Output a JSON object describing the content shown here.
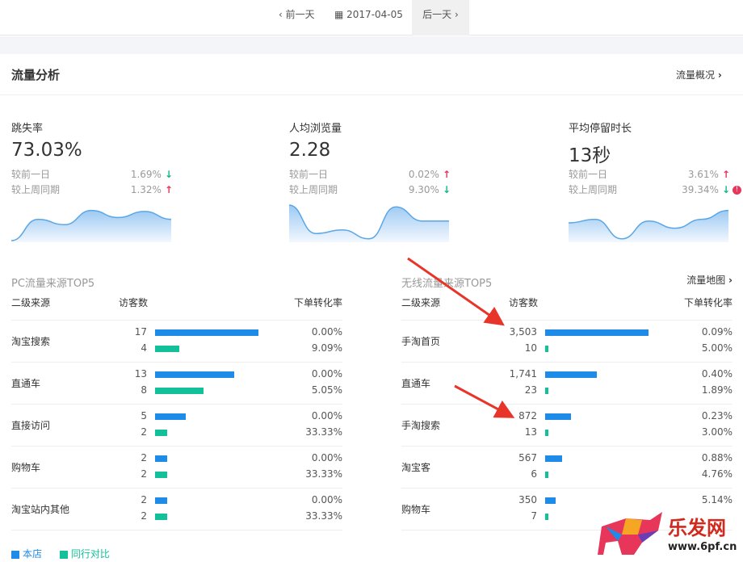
{
  "datebar": {
    "prev": "前一天",
    "date": "2017-04-05",
    "next": "后一天"
  },
  "section": {
    "title": "流量分析",
    "overview_link": "流量概况"
  },
  "metrics": [
    {
      "label": "跳失率",
      "value": "73.03%",
      "day_label": "较前一日",
      "day_value": "1.69%",
      "day_dir": "down",
      "week_label": "较上周同期",
      "week_value": "1.32%",
      "week_dir": "up",
      "trend": [
        0,
        0.6,
        0.45,
        0.85,
        0.65,
        0.82,
        0.6
      ]
    },
    {
      "label": "人均浏览量",
      "value": "2.28",
      "day_label": "较前一日",
      "day_value": "0.02%",
      "day_dir": "up",
      "week_label": "较上周同期",
      "week_value": "9.30%",
      "week_dir": "down",
      "trend": [
        1,
        0.2,
        0.3,
        0.05,
        0.95,
        0.55,
        0.55
      ]
    },
    {
      "label": "平均停留时长",
      "value": "13秒",
      "day_label": "较前一日",
      "day_value": "3.61%",
      "day_dir": "up",
      "week_label": "较上周同期",
      "week_value": "39.34%",
      "week_dir": "down",
      "warning": true,
      "trend": [
        0.5,
        0.6,
        0.05,
        0.55,
        0.35,
        0.6,
        0.85
      ]
    }
  ],
  "colors": {
    "store": "#1e8be8",
    "peer": "#12c09a",
    "up": "#e8355a",
    "down": "#12b88a"
  },
  "pc": {
    "title": "PC流量来源TOP5",
    "col_source": "二级来源",
    "col_visitors": "访客数",
    "col_rate": "下单转化率",
    "max": 17,
    "rows": [
      {
        "source": "淘宝搜索",
        "store": 17,
        "peer": 4,
        "store_rate": "0.00%",
        "peer_rate": "9.09%"
      },
      {
        "source": "直通车",
        "store": 13,
        "peer": 8,
        "store_rate": "0.00%",
        "peer_rate": "5.05%"
      },
      {
        "source": "直接访问",
        "store": 5,
        "peer": 2,
        "store_rate": "0.00%",
        "peer_rate": "33.33%"
      },
      {
        "source": "购物车",
        "store": 2,
        "peer": 2,
        "store_rate": "0.00%",
        "peer_rate": "33.33%"
      },
      {
        "source": "淘宝站内其他",
        "store": 2,
        "peer": 2,
        "store_rate": "0.00%",
        "peer_rate": "33.33%"
      }
    ]
  },
  "wireless": {
    "title": "无线流量来源TOP5",
    "map_link": "流量地图",
    "col_source": "二级来源",
    "col_visitors": "访客数",
    "col_rate": "下单转化率",
    "max": 3503,
    "rows": [
      {
        "source": "手淘首页",
        "store": "3,503",
        "store_n": 3503,
        "peer": "10",
        "peer_n": 10,
        "store_rate": "0.09%",
        "peer_rate": "5.00%"
      },
      {
        "source": "直通车",
        "store": "1,741",
        "store_n": 1741,
        "peer": "23",
        "peer_n": 23,
        "store_rate": "0.40%",
        "peer_rate": "1.89%"
      },
      {
        "source": "手淘搜索",
        "store": "872",
        "store_n": 872,
        "peer": "13",
        "peer_n": 13,
        "store_rate": "0.23%",
        "peer_rate": "3.00%"
      },
      {
        "source": "淘宝客",
        "store": "567",
        "store_n": 567,
        "peer": "6",
        "peer_n": 6,
        "store_rate": "0.88%",
        "peer_rate": "4.76%"
      },
      {
        "source": "购物车",
        "store": "350",
        "store_n": 350,
        "peer": "7",
        "peer_n": 7,
        "store_rate": "5.14%",
        "peer_rate": ""
      }
    ]
  },
  "legend": {
    "store": "本店",
    "peer": "同行对比"
  },
  "watermark": {
    "name": "乐发网",
    "url": "www.6pf.cn"
  }
}
